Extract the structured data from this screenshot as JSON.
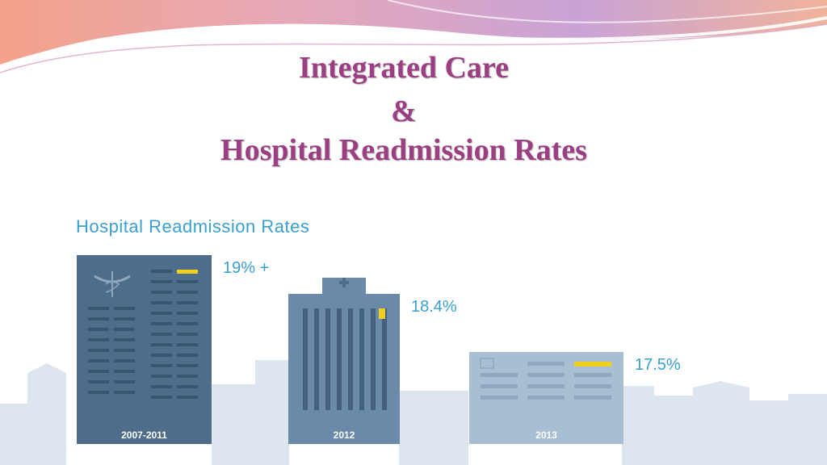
{
  "slide": {
    "title_line1": "Integrated Care",
    "title_line2": "&",
    "title_line3": "Hospital Readmission Rates"
  },
  "chart_data": {
    "type": "bar",
    "title": "Hospital Readmission Rates",
    "categories": [
      "2007-2011",
      "2012",
      "2013"
    ],
    "values": [
      19,
      18.4,
      17.5
    ],
    "value_labels": [
      "19% +",
      "18.4%",
      "17.5%"
    ],
    "colors": [
      "#4e6d8a",
      "#6b89a8",
      "#a7bed3"
    ]
  },
  "colors": {
    "title": "#9b3f82",
    "chart_title": "#3a9fcf",
    "skyline": "#dde6ee",
    "accent": "#f2cf1d"
  }
}
